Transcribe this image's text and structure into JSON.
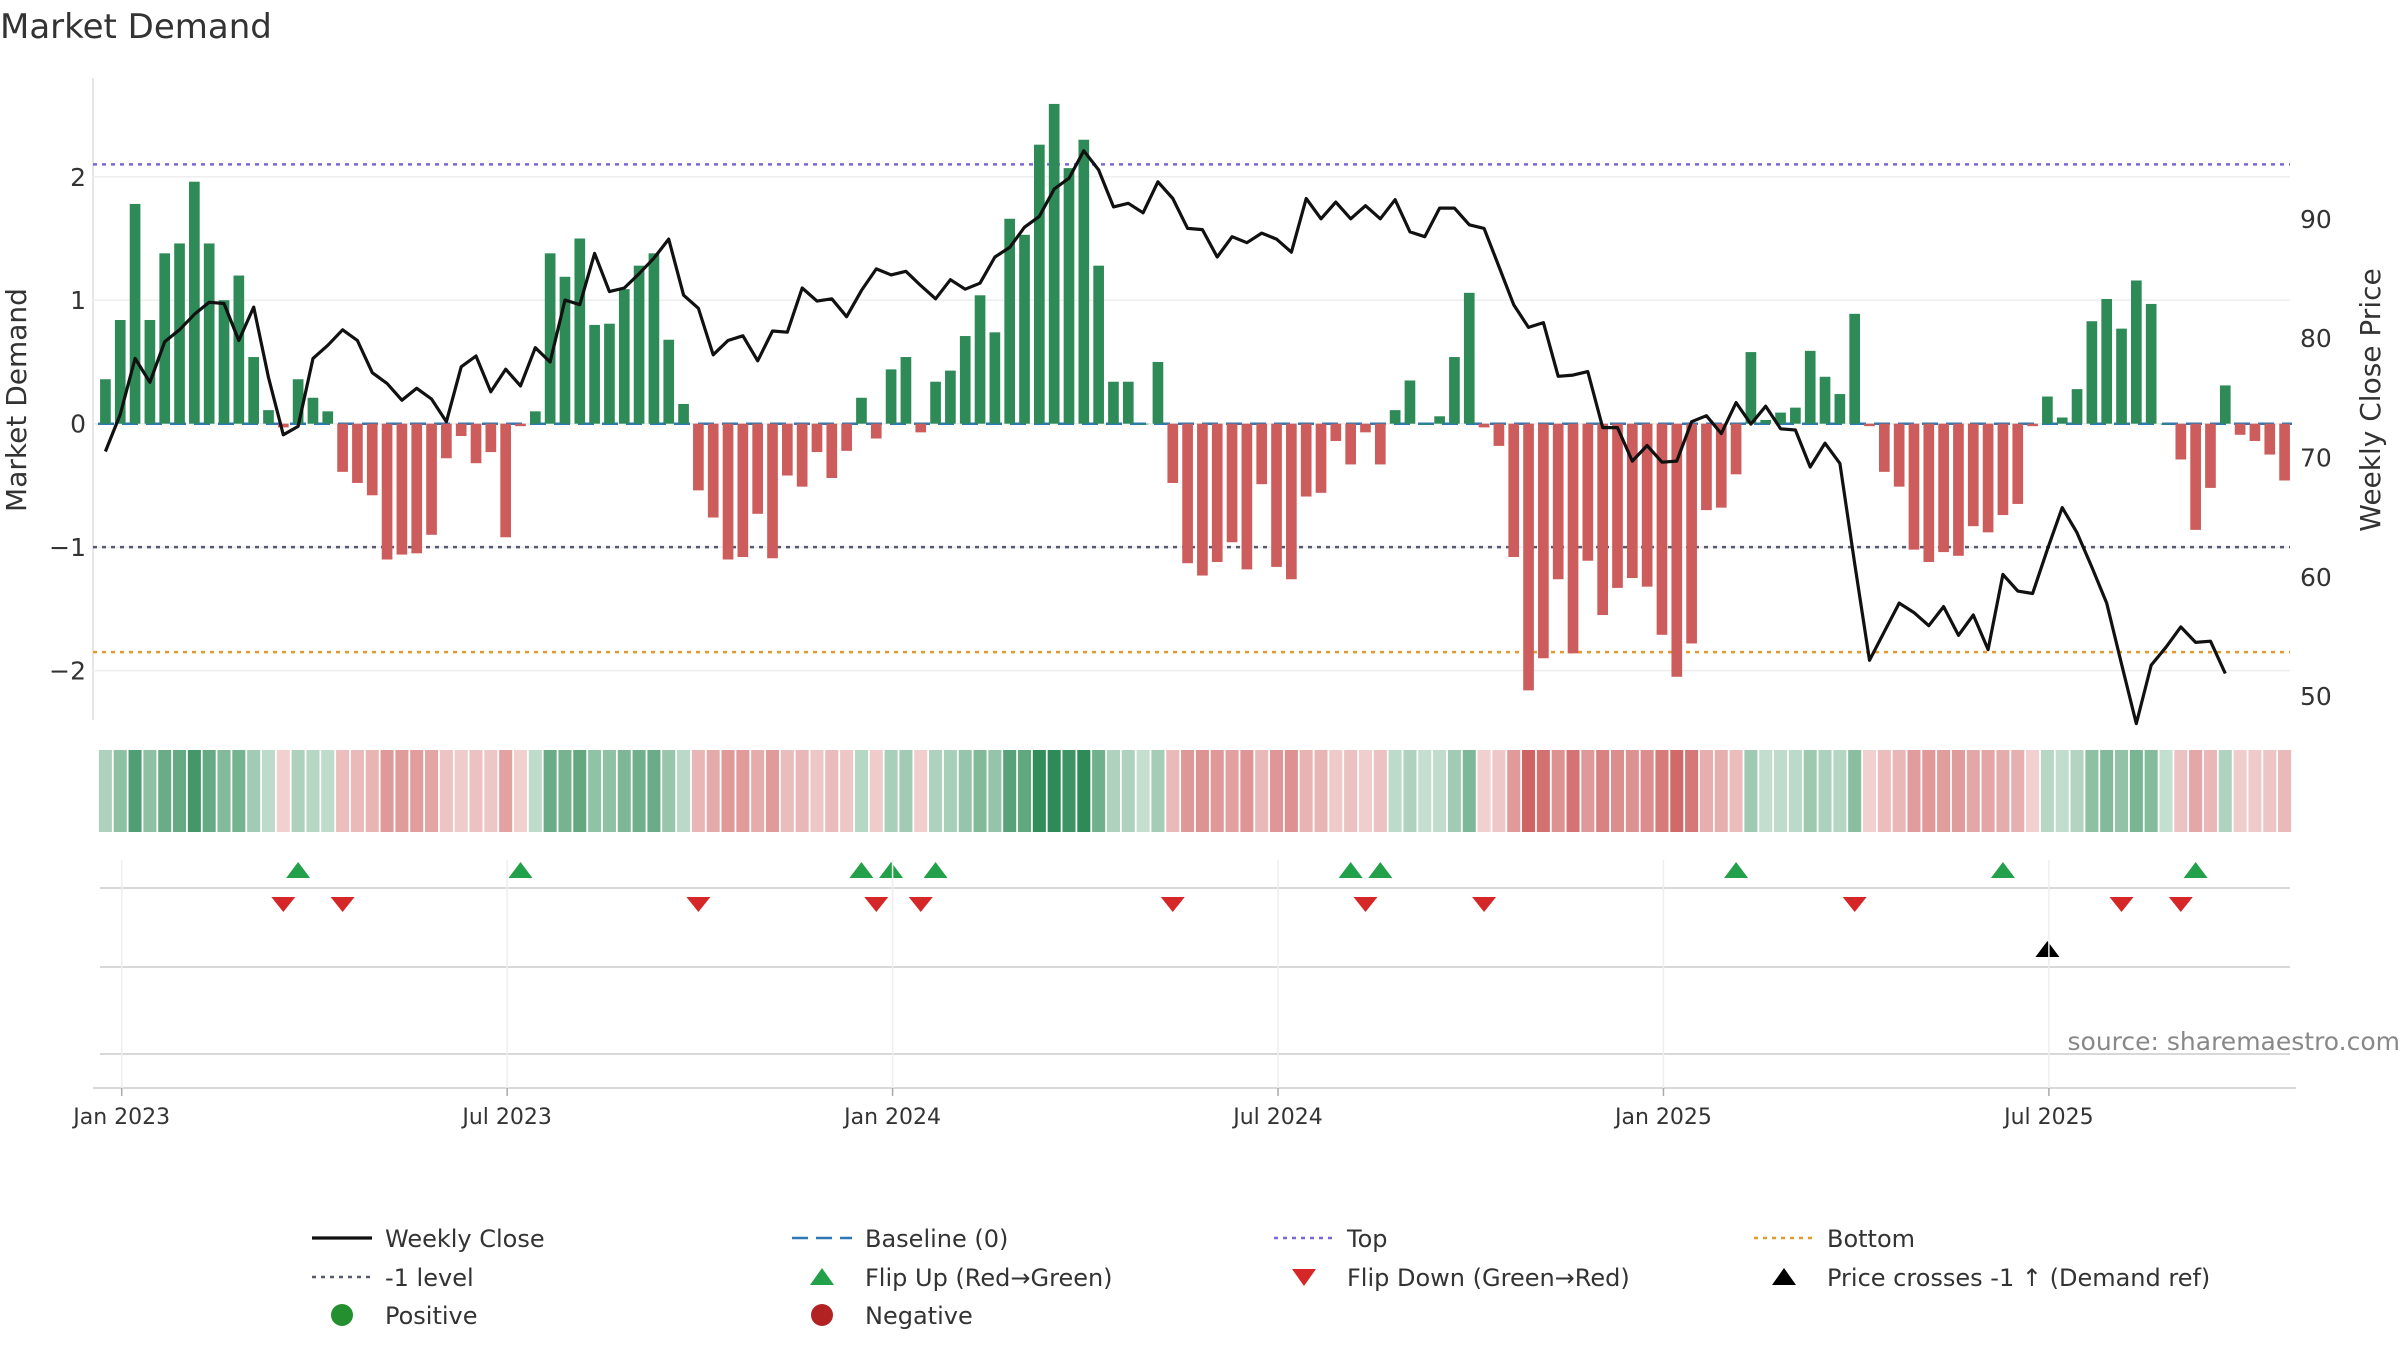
{
  "chart_data": {
    "type": "bar",
    "title": "Market Demand",
    "ylabel_left": "Market Demand",
    "ylabel_right": "Weekly Close Price",
    "source_note": "source: sharemaestro.com",
    "x_ticks": [
      "Jan 2023",
      "Jul 2023",
      "Jan 2024",
      "Jul 2024",
      "Jan 2025",
      "Jul 2025"
    ],
    "left_ticks": [
      "2",
      "1",
      "0",
      "−1",
      "−2"
    ],
    "right_ticks": [
      "90",
      "80",
      "70",
      "60",
      "50"
    ],
    "ylim_left": [
      -2.4,
      2.8
    ],
    "ylim_right": [
      48.0,
      101.8
    ],
    "reference_lines": {
      "top": 2.1,
      "minus_one": -1.0,
      "bottom": -1.85,
      "baseline": 0
    },
    "weeks_before_jan_2023": 1.6,
    "demand": [
      0.36,
      0.84,
      1.78,
      0.84,
      1.38,
      1.46,
      1.96,
      1.46,
      1.0,
      1.2,
      0.54,
      0.11,
      -0.03,
      0.36,
      0.21,
      0.1,
      -0.39,
      -0.48,
      -0.58,
      -1.1,
      -1.06,
      -1.05,
      -0.9,
      -0.28,
      -0.1,
      -0.32,
      -0.23,
      -0.92,
      -0.02,
      0.1,
      1.38,
      1.19,
      1.5,
      0.8,
      0.81,
      1.09,
      1.28,
      1.38,
      0.68,
      0.16,
      -0.54,
      -0.76,
      -1.1,
      -1.08,
      -0.73,
      -1.09,
      -0.42,
      -0.51,
      -0.23,
      -0.44,
      -0.22,
      0.21,
      -0.12,
      0.44,
      0.54,
      -0.07,
      0.34,
      0.43,
      0.71,
      1.04,
      0.74,
      1.66,
      1.53,
      2.26,
      2.59,
      2.07,
      2.3,
      1.28,
      0.34,
      0.34,
      0.0,
      0.5,
      -0.48,
      -1.13,
      -1.23,
      -1.12,
      -0.96,
      -1.18,
      -0.49,
      -1.16,
      -1.26,
      -0.59,
      -0.56,
      -0.14,
      -0.33,
      -0.07,
      -0.33,
      0.11,
      0.35,
      0.0,
      0.06,
      0.54,
      1.06,
      -0.03,
      -0.18,
      -1.08,
      -2.16,
      -1.9,
      -1.26,
      -1.86,
      -1.11,
      -1.55,
      -1.33,
      -1.25,
      -1.32,
      -1.71,
      -2.05,
      -1.78,
      -0.7,
      -0.68,
      -0.41,
      0.58,
      0.03,
      0.09,
      0.13,
      0.59,
      0.38,
      0.24,
      0.89,
      -0.02,
      -0.39,
      -0.51,
      -1.02,
      -1.12,
      -1.04,
      -1.07,
      -0.83,
      -0.88,
      -0.74,
      -0.65,
      -0.02,
      0.22,
      0.05,
      0.28,
      0.83,
      1.01,
      0.77,
      1.16,
      0.97,
      0.0,
      -0.29,
      -0.86,
      -0.52,
      0.31,
      -0.09,
      -0.14,
      -0.25,
      -0.46
    ],
    "weekly_close": [
      70.5,
      73.6,
      78.3,
      76.3,
      79.7,
      80.7,
      82.0,
      83.0,
      82.9,
      79.8,
      82.6,
      76.7,
      71.9,
      72.6,
      78.3,
      79.4,
      80.7,
      79.8,
      77.1,
      76.2,
      74.8,
      75.8,
      74.9,
      73.0,
      77.6,
      78.5,
      75.5,
      77.4,
      76.0,
      79.2,
      78.0,
      83.2,
      82.8,
      87.1,
      83.9,
      84.2,
      85.4,
      86.7,
      88.3,
      83.6,
      82.5,
      78.6,
      79.8,
      80.2,
      78.1,
      80.6,
      80.5,
      84.2,
      83.1,
      83.3,
      81.8,
      84.0,
      85.8,
      85.3,
      85.6,
      84.4,
      83.3,
      84.9,
      84.1,
      84.6,
      86.8,
      87.6,
      89.3,
      90.2,
      92.5,
      93.4,
      95.7,
      94.1,
      91.0,
      91.3,
      90.5,
      93.1,
      91.7,
      89.2,
      89.1,
      86.8,
      88.5,
      88.0,
      88.8,
      88.3,
      87.2,
      91.7,
      90.0,
      91.4,
      90.0,
      91.1,
      90.0,
      91.6,
      88.9,
      88.5,
      90.9,
      90.9,
      89.5,
      89.2,
      86.0,
      82.8,
      80.9,
      81.3,
      76.8,
      76.9,
      77.2,
      72.5,
      72.5,
      69.7,
      71.0,
      69.6,
      69.7,
      73.0,
      73.5,
      72.0,
      74.6,
      72.8,
      74.3,
      72.4,
      72.3,
      69.2,
      71.2,
      69.5,
      61.1,
      53.0,
      55.4,
      57.8,
      57.0,
      55.9,
      57.5,
      55.1,
      56.8,
      53.9,
      60.2,
      58.8,
      58.6,
      62.3,
      65.8,
      63.7,
      60.8,
      57.8,
      52.7,
      47.7,
      52.6,
      54.1,
      55.8,
      54.5,
      54.6,
      51.9
    ],
    "flip_up_weeks": [
      13,
      28,
      51,
      53,
      56,
      84,
      86,
      110,
      128,
      141
    ],
    "flip_down_weeks": [
      12,
      16,
      40,
      52,
      55,
      72,
      85,
      93,
      118,
      136,
      140
    ],
    "price_cross_weeks": [
      131
    ],
    "legend": [
      {
        "label": "Weekly Close",
        "kind": "line",
        "color": "#111111"
      },
      {
        "label": "Baseline (0)",
        "kind": "dash",
        "color": "#2f78b4"
      },
      {
        "label": "Top",
        "kind": "dot",
        "color": "#7b68d8"
      },
      {
        "label": "Bottom",
        "kind": "dot",
        "color": "#e39b2e"
      },
      {
        "label": "-1 level",
        "kind": "dot",
        "color": "#555a6e"
      },
      {
        "label": "Flip Up (Red→Green)",
        "kind": "tri-up",
        "color": "#23a04a"
      },
      {
        "label": "Flip Down (Green→Red)",
        "kind": "tri-down",
        "color": "#d62728"
      },
      {
        "label": "Price crosses -1 ↑ (Demand ref)",
        "kind": "tri-up",
        "color": "#000000"
      },
      {
        "label": "Positive",
        "kind": "circle",
        "color": "#248f2e"
      },
      {
        "label": "Negative",
        "kind": "circle",
        "color": "#b22222"
      }
    ],
    "colors": {
      "positive_bar": "#2e8b57",
      "negative_bar": "#cd5c5c",
      "close_line": "#111111",
      "flip_up": "#23a04a",
      "flip_down": "#d62728",
      "price_cross": "#000000"
    }
  }
}
